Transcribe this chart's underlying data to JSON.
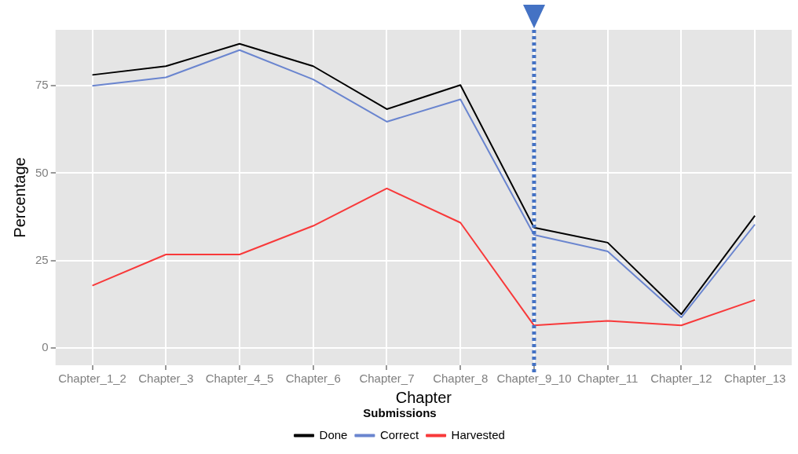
{
  "chart_data": {
    "type": "line",
    "xlabel": "Chapter",
    "ylabel": "Percentage",
    "legend_title": "Submissions",
    "categories": [
      "Chapter_1_2",
      "Chapter_3",
      "Chapter_4_5",
      "Chapter_6",
      "Chapter_7",
      "Chapter_8",
      "Chapter_9_10",
      "Chapter_11",
      "Chapter_12",
      "Chapter_13"
    ],
    "series": [
      {
        "name": "Done",
        "color": "#000000",
        "values": [
          78.1,
          80.6,
          87.0,
          80.6,
          68.3,
          75.2,
          34.4,
          30.1,
          9.6,
          37.8
        ]
      },
      {
        "name": "Correct",
        "color": "#6a85cf",
        "values": [
          75.0,
          77.4,
          85.2,
          76.8,
          64.7,
          71.1,
          32.3,
          27.6,
          8.7,
          35.3
        ]
      },
      {
        "name": "Harvested",
        "color": "#f8393a",
        "values": [
          17.8,
          26.7,
          26.7,
          34.9,
          45.6,
          35.8,
          6.4,
          7.7,
          6.4,
          13.7
        ]
      }
    ],
    "ylim": [
      -5,
      91
    ],
    "yticks": [
      0,
      25,
      50,
      75
    ],
    "grid": true,
    "legend": "bottom",
    "marker": "none",
    "line_style": "solid",
    "ref_lines": [
      {
        "axis": "x",
        "value": "Chapter_9_10",
        "color": "#4472c4",
        "line_style": "dotted"
      }
    ]
  }
}
